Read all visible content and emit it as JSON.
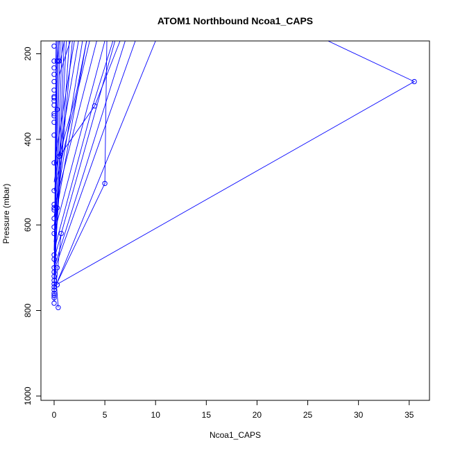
{
  "chart_data": {
    "type": "line",
    "title": "ATOM1 Northbound Ncoa1_CAPS",
    "xlabel": "Ncoa1_CAPS",
    "ylabel": "Pressure (mbar)",
    "xlim": [
      -1.3,
      37.0
    ],
    "ylim": [
      1010,
      170
    ],
    "y_reversed": true,
    "x_ticks": [
      0,
      5,
      10,
      15,
      20,
      25,
      30,
      35
    ],
    "y_ticks": [
      200,
      400,
      600,
      800,
      1000
    ],
    "grid": false,
    "legend": "none",
    "series_color": "#0000ff",
    "marker": "open-circle",
    "series": [
      {
        "points": [
          [
            0.2,
            740
          ],
          [
            35.5,
            265
          ],
          [
            27,
            170
          ]
        ]
      },
      {
        "points": [
          [
            0.3,
            735
          ],
          [
            5.0,
            503
          ],
          [
            5.2,
            170
          ]
        ]
      },
      {
        "points": [
          [
            0.7,
            620
          ],
          [
            0.2,
            740
          ],
          [
            10.0,
            170
          ]
        ]
      },
      {
        "points": [
          [
            0.4,
            793
          ],
          [
            0.1,
            700
          ],
          [
            8.0,
            170
          ]
        ]
      },
      {
        "points": [
          [
            0.5,
            440
          ],
          [
            4.0,
            322
          ],
          [
            6.5,
            170
          ]
        ]
      },
      {
        "points": [
          [
            0.1,
            650
          ],
          [
            3.8,
            322
          ],
          [
            5.8,
            170
          ]
        ]
      },
      {
        "points": [
          [
            0.0,
            700
          ],
          [
            7.0,
            170
          ]
        ]
      },
      {
        "points": [
          [
            0.0,
            680
          ],
          [
            6.0,
            170
          ]
        ]
      },
      {
        "points": [
          [
            0.0,
            620
          ],
          [
            5.0,
            170
          ]
        ]
      },
      {
        "points": [
          [
            0.0,
            560
          ],
          [
            4.2,
            170
          ]
        ]
      },
      {
        "points": [
          [
            0.0,
            520
          ],
          [
            3.5,
            170
          ]
        ]
      },
      {
        "points": [
          [
            0.0,
            600
          ],
          [
            3.2,
            170
          ]
        ]
      },
      {
        "points": [
          [
            0.0,
            580
          ],
          [
            2.8,
            170
          ]
        ]
      },
      {
        "points": [
          [
            0.0,
            500
          ],
          [
            2.4,
            170
          ]
        ]
      },
      {
        "points": [
          [
            0.0,
            460
          ],
          [
            2.0,
            170
          ]
        ]
      },
      {
        "points": [
          [
            0.0,
            640
          ],
          [
            1.8,
            170
          ]
        ]
      },
      {
        "points": [
          [
            0.0,
            700
          ],
          [
            1.5,
            170
          ]
        ]
      },
      {
        "points": [
          [
            0.0,
            730
          ],
          [
            1.2,
            170
          ]
        ]
      },
      {
        "points": [
          [
            0.0,
            750
          ],
          [
            1.0,
            170
          ]
        ]
      },
      {
        "points": [
          [
            0.0,
            720
          ],
          [
            0.8,
            170
          ]
        ]
      },
      {
        "points": [
          [
            0.0,
            690
          ],
          [
            0.6,
            170
          ]
        ]
      },
      {
        "points": [
          [
            0.0,
            660
          ],
          [
            0.45,
            170
          ]
        ]
      },
      {
        "points": [
          [
            0.0,
            760
          ],
          [
            0.3,
            170
          ]
        ]
      },
      {
        "points": [
          [
            0.0,
            780
          ],
          [
            0.2,
            170
          ]
        ]
      },
      {
        "points": [
          [
            0.5,
            440
          ],
          [
            2.2,
            290
          ],
          [
            3.2,
            170
          ]
        ]
      },
      {
        "points": [
          [
            0.6,
            220
          ],
          [
            1.0,
            170
          ]
        ]
      },
      {
        "points": [
          [
            0.5,
            250
          ],
          [
            1.6,
            170
          ]
        ]
      },
      {
        "points": [
          [
            0.1,
            455
          ],
          [
            0.3,
            215
          ],
          [
            0.5,
            170
          ]
        ]
      },
      {
        "points": [
          [
            0.0,
            730
          ],
          [
            0.1,
            600
          ],
          [
            0.2,
            170
          ]
        ]
      }
    ],
    "markers": [
      [
        0.0,
        182
      ],
      [
        0.0,
        217
      ],
      [
        0.0,
        233
      ],
      [
        0.0,
        248
      ],
      [
        0.0,
        265
      ],
      [
        0.0,
        285
      ],
      [
        0.0,
        300
      ],
      [
        0.0,
        303
      ],
      [
        0.0,
        310
      ],
      [
        0.0,
        320
      ],
      [
        0.0,
        340
      ],
      [
        0.0,
        345
      ],
      [
        0.0,
        360
      ],
      [
        0.0,
        390
      ],
      [
        0.0,
        455
      ],
      [
        0.0,
        520
      ],
      [
        0.0,
        552
      ],
      [
        0.0,
        560
      ],
      [
        0.0,
        565
      ],
      [
        0.0,
        585
      ],
      [
        0.0,
        605
      ],
      [
        0.0,
        620
      ],
      [
        0.0,
        670
      ],
      [
        0.0,
        680
      ],
      [
        0.0,
        700
      ],
      [
        0.0,
        710
      ],
      [
        0.0,
        720
      ],
      [
        0.0,
        730
      ],
      [
        0.0,
        738
      ],
      [
        0.0,
        745
      ],
      [
        0.0,
        752
      ],
      [
        0.0,
        760
      ],
      [
        0.0,
        765
      ],
      [
        0.0,
        770
      ],
      [
        0.0,
        783
      ],
      [
        0.3,
        217
      ],
      [
        0.3,
        330
      ],
      [
        0.3,
        560
      ],
      [
        0.3,
        700
      ],
      [
        0.3,
        740
      ],
      [
        0.4,
        793
      ],
      [
        0.5,
        217
      ],
      [
        0.5,
        440
      ],
      [
        0.7,
        620
      ],
      [
        4.0,
        322
      ],
      [
        5.0,
        503
      ],
      [
        35.5,
        265
      ]
    ]
  }
}
